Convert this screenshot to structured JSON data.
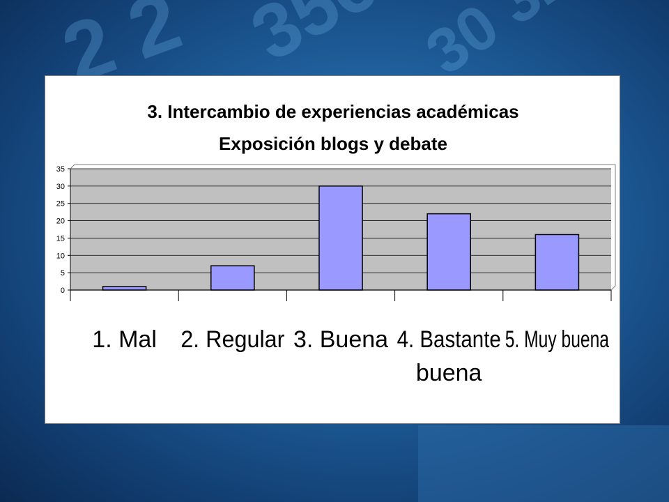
{
  "chart_data": {
    "type": "bar",
    "title": [
      "3. Intercambio de experiencias académicas",
      "Exposición blogs y debate"
    ],
    "categories": [
      [
        "1. Mal"
      ],
      [
        "2. Regular"
      ],
      [
        "3. Buena"
      ],
      [
        "4. Bastante",
        "buena"
      ],
      [
        "5. Muy buena"
      ]
    ],
    "values": [
      1,
      7,
      30,
      22,
      16
    ],
    "ylim": [
      0,
      35
    ],
    "yticks": [
      "0",
      "5",
      "10",
      "15",
      "20",
      "25",
      "30",
      "35"
    ],
    "grid": true,
    "legend": "none",
    "colors": {
      "bar_fill": "#9999ff",
      "bar_stroke": "#000000",
      "plot_background": "#c0c0c0",
      "gridline": "#000000"
    }
  }
}
